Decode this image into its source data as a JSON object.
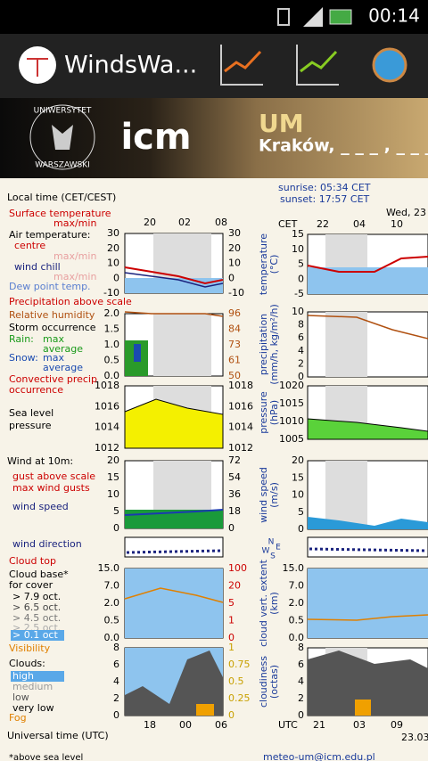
{
  "status_bar": {
    "time": "00:14"
  },
  "app_bar": {
    "title": "WindsWa..."
  },
  "banner": {
    "university_top": "UNIWERSYTET",
    "university_bottom": "WARSZAWSKI",
    "logo": "icm",
    "model": "UM",
    "location": "Kraków, _ _ _ , _ _ _ , P"
  },
  "left_meteogram": {
    "top_hours": [
      "20",
      "02",
      "08"
    ],
    "bottom_hours": [
      "18",
      "00",
      "06"
    ],
    "legend": [
      "Local time (CET/CEST)",
      "Surface temperature",
      "max/min",
      "Air temperature:",
      "centre",
      "max/min",
      "wind chill",
      "max/min",
      "Dew point temp.",
      "Precipitation above scale",
      "Relative humidity",
      "Storm occurrence",
      "Rain:",
      "max",
      "average",
      "Snow:",
      "max",
      "average",
      "Convective precip",
      "occurrence",
      "Sea level",
      "pressure",
      "Wind at 10m:",
      "gust above scale",
      "max wind gusts",
      "wind speed",
      "wind direction",
      "Cloud top",
      "Cloud base*",
      "for cover",
      "> 7.9 oct.",
      "> 6.5 oct.",
      "> 4.5 oct.",
      "> 2.5 oct.",
      "> 0.1 oct",
      "Visibility",
      "Clouds:",
      "high",
      "medium",
      "low",
      "very low",
      "Fog",
      "Universal time (UTC)"
    ],
    "panels": [
      {
        "left_ticks": [
          "30",
          "20",
          "10",
          "0",
          "-10"
        ],
        "right_ticks": [
          "30",
          "20",
          "10",
          "0",
          "-10"
        ]
      },
      {
        "left_ticks": [
          "2.0",
          "1.5",
          "1.0",
          "0.5",
          "0.0"
        ],
        "right_ticks": [
          "96",
          "84",
          "73",
          "61",
          "50"
        ]
      },
      {
        "left_ticks": [
          "1018",
          "1016",
          "1014",
          "1012"
        ],
        "right_ticks": [
          "1018",
          "1016",
          "1014",
          "1012"
        ]
      },
      {
        "left_ticks": [
          "20",
          "15",
          "10",
          "5",
          "0"
        ],
        "right_ticks": [
          "72",
          "54",
          "36",
          "18",
          "0"
        ]
      },
      {
        "left_ticks": [
          "15.0",
          "7.0",
          "2.0",
          "0.5",
          "0.0"
        ],
        "right_ticks": [
          "100",
          "20",
          "5",
          "1",
          "0"
        ]
      },
      {
        "left_ticks": [
          "8",
          "6",
          "4",
          "2",
          "0"
        ],
        "right_ticks": [
          "1",
          "0.75",
          "0.5",
          "0.25",
          "0"
        ]
      }
    ]
  },
  "right_meteogram": {
    "sunrise": "sunrise: 05:34 CET",
    "sunset": "sunset: 17:57 CET",
    "date": "Wed, 23",
    "time_zone": "CET",
    "top_hours": [
      "22",
      "04",
      "10"
    ],
    "utc_label": "UTC",
    "bottom_hours": [
      "21",
      "03",
      "09"
    ],
    "bottom_date": "23.03",
    "wind_rose": [
      "W",
      "S",
      "N",
      "E"
    ],
    "panels": [
      {
        "axis_label": [
          "temperature",
          "(°C)"
        ],
        "ticks": [
          "15",
          "10",
          "5",
          "0",
          "-5"
        ]
      },
      {
        "axis_label": [
          "precipitation",
          "(mm/h, kg/m²/h)"
        ],
        "ticks": [
          "10",
          "8",
          "6",
          "4",
          "2",
          "0"
        ]
      },
      {
        "axis_label": [
          "pressure",
          "(hPa)"
        ],
        "ticks": [
          "1020",
          "1015",
          "1010",
          "1005"
        ]
      },
      {
        "axis_label": [
          "wind speed",
          "(m/s)"
        ],
        "ticks": [
          "20",
          "15",
          "10",
          "5",
          "0"
        ]
      },
      {
        "axis_label": [
          "cloud vert. extent",
          "(km)"
        ],
        "ticks": [
          "15.0",
          "7.0",
          "2.0",
          "0.5",
          "0.0"
        ]
      },
      {
        "axis_label": [
          "cloudiness",
          "(octas)"
        ],
        "ticks": [
          "8",
          "6",
          "4",
          "2",
          "0"
        ]
      }
    ]
  },
  "footer": {
    "note": "*above sea level",
    "email": "meteo-um@icm.edu.pl"
  }
}
